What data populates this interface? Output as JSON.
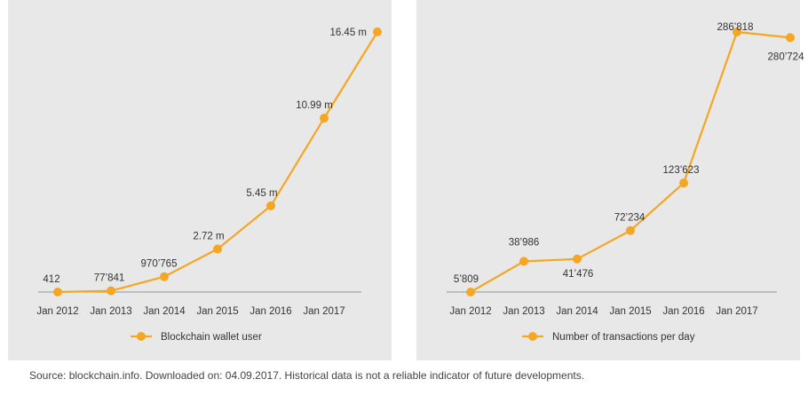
{
  "chart_data": [
    {
      "type": "line",
      "categories": [
        "Jan 2012",
        "Jan 2013",
        "Jan 2014",
        "Jan 2015",
        "Jan 2016",
        "Jan 2017",
        ""
      ],
      "series": [
        {
          "name": "Blockchain wallet user",
          "values": [
            412,
            77841,
            970765,
            2720000,
            5450000,
            10990000,
            16450000
          ],
          "labels": [
            "412",
            "77’841",
            "970’765",
            "2.72 m",
            "5.45 m",
            "10.99 m",
            "16.45 m"
          ]
        }
      ],
      "ylim": [
        0,
        16500000
      ],
      "grid": false,
      "legend": "bottom-center",
      "color": "#f5a623"
    },
    {
      "type": "line",
      "categories": [
        "Jan 2012",
        "Jan 2013",
        "Jan 2014",
        "Jan 2015",
        "Jan 2016",
        "Jan 2017",
        ""
      ],
      "series": [
        {
          "name": "Number of transactions per day",
          "values": [
            5809,
            38986,
            41476,
            72234,
            123623,
            286818,
            280724
          ],
          "labels": [
            "5’809",
            "38’986",
            "41’476",
            "72’234",
            "123’623",
            "286’818",
            "280’724"
          ]
        }
      ],
      "ylim": [
        5809,
        286818
      ],
      "grid": false,
      "legend": "bottom-center",
      "color": "#f5a623"
    }
  ],
  "footer": {
    "source": "Source: blockchain.info. Downloaded on: 04.09.2017. Historical data is not a reliable indicator of future developments."
  }
}
